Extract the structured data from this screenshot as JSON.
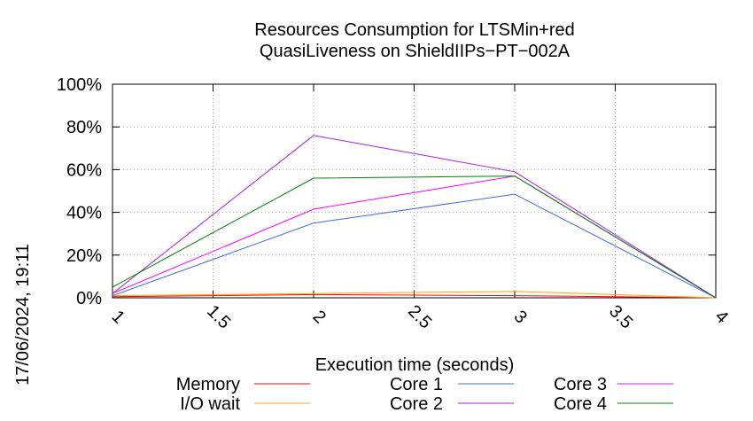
{
  "chart_data": {
    "type": "line",
    "title": [
      "Resources Consumption for LTSMin+red",
      "QuasiLiveness on ShieldIIPs−PT−002A"
    ],
    "xlabel": "Execution time (seconds)",
    "ylabel": "",
    "xlim": [
      1,
      4
    ],
    "ylim": [
      0,
      100
    ],
    "x_ticks": [
      "1",
      "1.5",
      "2",
      "2.5",
      "3",
      "3.5",
      "4"
    ],
    "x_tick_values": [
      1,
      1.5,
      2,
      2.5,
      3,
      3.5,
      4
    ],
    "y_ticks": [
      "0%",
      "20%",
      "40%",
      "60%",
      "80%",
      "100%"
    ],
    "y_tick_values": [
      0,
      20,
      40,
      60,
      80,
      100
    ],
    "grid": true,
    "legend_position": "bottom",
    "x": [
      1,
      2,
      3,
      4
    ],
    "series": [
      {
        "name": "Memory",
        "color": "#ff0000",
        "values": [
          0.5,
          1.5,
          1,
          0
        ]
      },
      {
        "name": "I/O wait",
        "color": "#ffa500",
        "values": [
          1,
          2,
          3,
          0
        ]
      },
      {
        "name": "Core 1",
        "color": "#4169e1",
        "values": [
          1,
          35,
          48.5,
          0
        ]
      },
      {
        "name": "Core 2",
        "color": "#a020f0",
        "values": [
          2,
          76,
          59,
          0
        ]
      },
      {
        "name": "Core 3",
        "color": "#ff00ff",
        "values": [
          2,
          41.5,
          57,
          0
        ]
      },
      {
        "name": "Core 4",
        "color": "#008000",
        "values": [
          5,
          56,
          57,
          0
        ]
      }
    ],
    "timestamp": "17/06/2024, 19:11"
  }
}
